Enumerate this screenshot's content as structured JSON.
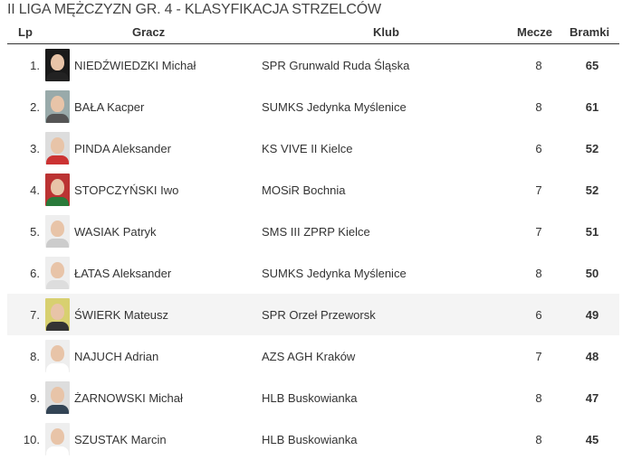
{
  "title": "II LIGA MĘŻCZYZN GR. 4 - KLASYFIKACJA STRZELCÓW",
  "columns": {
    "lp": "Lp",
    "player": "Gracz",
    "club": "Klub",
    "matches": "Mecze",
    "goals": "Bramki"
  },
  "rows": [
    {
      "lp": "1.",
      "name": "NIEDŹWIEDZKI Michał",
      "club": "SPR Grunwald Ruda Śląska",
      "matches": "8",
      "goals": "65",
      "bg": "#1a1a1a",
      "shirt": "#222"
    },
    {
      "lp": "2.",
      "name": "BAŁA Kacper",
      "club": "SUMKS Jedynka Myślenice",
      "matches": "8",
      "goals": "61",
      "bg": "#9aa",
      "shirt": "#555"
    },
    {
      "lp": "3.",
      "name": "PINDA Aleksander",
      "club": "KS VIVE II Kielce",
      "matches": "6",
      "goals": "52",
      "bg": "#ddd",
      "shirt": "#c33"
    },
    {
      "lp": "4.",
      "name": "STOPCZYŃSKI Iwo",
      "club": "MOSiR Bochnia",
      "matches": "7",
      "goals": "52",
      "bg": "#b33",
      "shirt": "#2a7a3a"
    },
    {
      "lp": "5.",
      "name": "WASIAK Patryk",
      "club": "SMS III ZPRP Kielce",
      "matches": "7",
      "goals": "51",
      "bg": "#eee",
      "shirt": "#ccc"
    },
    {
      "lp": "6.",
      "name": "ŁATAS Aleksander",
      "club": "SUMKS Jedynka Myślenice",
      "matches": "8",
      "goals": "50",
      "bg": "#eee",
      "shirt": "#ddd"
    },
    {
      "lp": "7.",
      "name": "ŚWIERK Mateusz",
      "club": "SPR Orzeł Przeworsk",
      "matches": "6",
      "goals": "49",
      "bg": "#d8d070",
      "shirt": "#333"
    },
    {
      "lp": "8.",
      "name": "NAJUCH Adrian",
      "club": "AZS AGH Kraków",
      "matches": "7",
      "goals": "48",
      "bg": "#eee",
      "shirt": "#fff"
    },
    {
      "lp": "9.",
      "name": "ŻARNOWSKI Michał",
      "club": "HLB Buskowianka",
      "matches": "8",
      "goals": "47",
      "bg": "#ddd",
      "shirt": "#345"
    },
    {
      "lp": "10.",
      "name": "SZUSTAK Marcin",
      "club": "HLB Buskowianka",
      "matches": "8",
      "goals": "45",
      "bg": "#eee",
      "shirt": "#fff"
    }
  ],
  "highlight_row": 7
}
